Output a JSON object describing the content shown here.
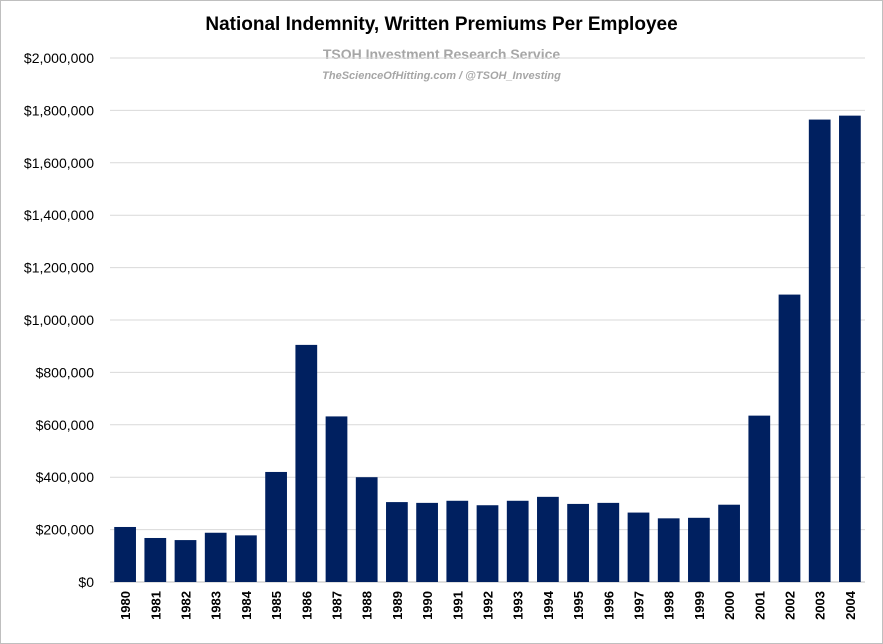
{
  "chart_data": {
    "type": "bar",
    "title": "National Indemnity, Written Premiums Per Employee",
    "subtitle": "TSOH Investment Research Service",
    "source": "TheScienceOfHitting.com / @TSOH_Investing",
    "xlabel": "",
    "ylabel": "",
    "ylim": [
      0,
      2000000
    ],
    "yticks": [
      "$0",
      "$200,000",
      "$400,000",
      "$600,000",
      "$800,000",
      "$1,000,000",
      "$1,200,000",
      "$1,400,000",
      "$1,600,000",
      "$1,800,000",
      "$2,000,000"
    ],
    "grid": true,
    "bar_color": "#002060",
    "categories": [
      "1980",
      "1981",
      "1982",
      "1983",
      "1984",
      "1985",
      "1986",
      "1987",
      "1988",
      "1989",
      "1990",
      "1991",
      "1992",
      "1993",
      "1994",
      "1995",
      "1996",
      "1997",
      "1998",
      "1999",
      "2000",
      "2001",
      "2002",
      "2003",
      "2004"
    ],
    "values": [
      210000,
      168000,
      160000,
      188000,
      178000,
      420000,
      905000,
      632000,
      400000,
      305000,
      302000,
      310000,
      293000,
      310000,
      325000,
      298000,
      302000,
      265000,
      243000,
      245000,
      295000,
      635000,
      1097000,
      1765000,
      1780000
    ]
  }
}
